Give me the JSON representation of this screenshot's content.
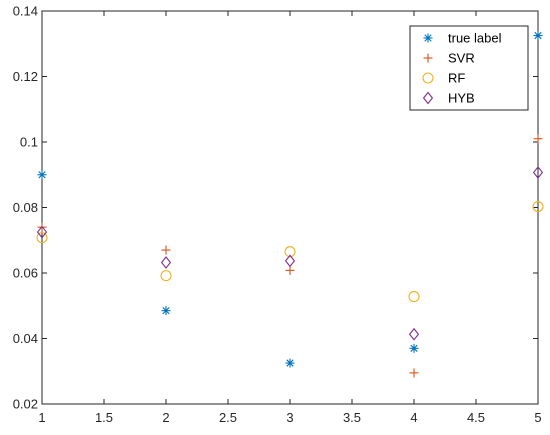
{
  "chart_data": {
    "type": "scatter",
    "title": "",
    "xlabel": "",
    "ylabel": "",
    "xlim": [
      1,
      5
    ],
    "ylim": [
      0.02,
      0.14
    ],
    "xticks": [
      "1",
      "1.5",
      "2",
      "2.5",
      "3",
      "3.5",
      "4",
      "4.5",
      "5"
    ],
    "yticks": [
      "0.02",
      "0.04",
      "0.06",
      "0.08",
      "0.1",
      "0.12",
      "0.14"
    ],
    "grid": false,
    "legend_position": "top-right",
    "x": [
      1,
      2,
      3,
      4,
      5
    ],
    "series": [
      {
        "name": "true label",
        "marker": "asterisk",
        "color": "#0072BD",
        "values": [
          0.09,
          0.0485,
          0.0325,
          0.037,
          0.1325
        ]
      },
      {
        "name": "SVR",
        "marker": "plus",
        "color": "#D95319",
        "values": [
          0.074,
          0.067,
          0.0608,
          0.0295,
          0.101
        ]
      },
      {
        "name": "RF",
        "marker": "circle",
        "color": "#EDB120",
        "values": [
          0.0708,
          0.0592,
          0.0665,
          0.0528,
          0.0803
        ]
      },
      {
        "name": "HYB",
        "marker": "diamond",
        "color": "#7E2F8E",
        "values": [
          0.0725,
          0.0632,
          0.0637,
          0.0413,
          0.0907
        ]
      }
    ]
  }
}
